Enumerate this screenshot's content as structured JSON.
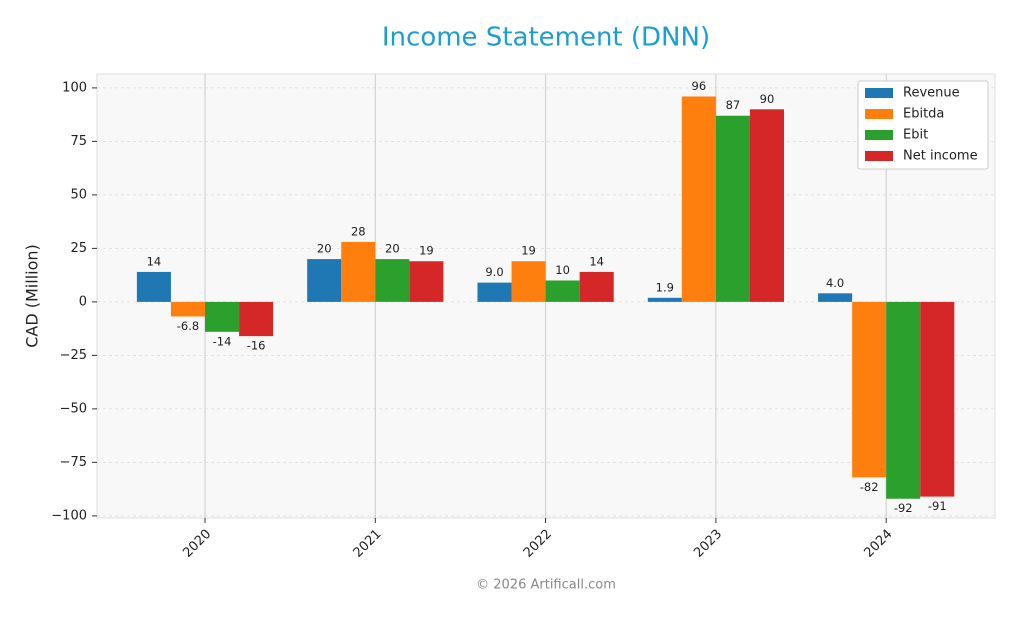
{
  "chart_data": {
    "type": "bar",
    "title": "Income Statement (DNN)",
    "ylabel": "CAD (Million)",
    "footer": "© 2026 Artificall.com",
    "categories": [
      "2020",
      "2021",
      "2022",
      "2023",
      "2024"
    ],
    "series": [
      {
        "name": "Revenue",
        "color": "#1f77b4",
        "values": [
          14,
          20,
          9,
          1.9,
          4
        ],
        "value_labels": [
          "14",
          "20",
          "9.0",
          "1.9",
          "4.0"
        ]
      },
      {
        "name": "Ebitda",
        "color": "#ff7f0e",
        "values": [
          -6.8,
          28,
          19,
          96,
          -82
        ]
      },
      {
        "name": "Ebit",
        "color": "#2ca02c",
        "values": [
          -14,
          20,
          10,
          87,
          -92
        ]
      },
      {
        "name": "Net income",
        "color": "#d62728",
        "values": [
          -16,
          19,
          14,
          90,
          -91
        ]
      }
    ],
    "ylim": [
      -101,
      106.5
    ],
    "yticks": [
      {
        "value": -100,
        "label": "−100"
      },
      {
        "value": -75,
        "label": "−75"
      },
      {
        "value": -50,
        "label": "−50"
      },
      {
        "value": -25,
        "label": "−25"
      },
      0,
      25,
      50,
      75,
      100
    ],
    "grid": true,
    "legend": "upper right"
  }
}
